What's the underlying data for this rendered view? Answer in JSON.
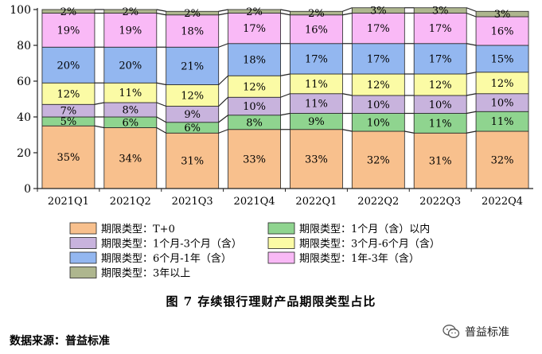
{
  "chart_data": {
    "type": "bar",
    "stacked": true,
    "categories": [
      "2021Q1",
      "2021Q2",
      "2021Q3",
      "2021Q4",
      "2022Q1",
      "2022Q2",
      "2022Q3",
      "2022Q4"
    ],
    "ylim": [
      0,
      100
    ],
    "yticks": [
      0,
      20,
      40,
      60,
      80,
      100
    ],
    "grid": false,
    "legend_position": "bottom",
    "series": [
      {
        "name": "期限类型：T+0",
        "color": "#F8C08D",
        "values": [
          35,
          34,
          31,
          33,
          33,
          32,
          31,
          32
        ]
      },
      {
        "name": "期限类型：1个月（含）以内",
        "color": "#8FD48F",
        "values": [
          5,
          6,
          6,
          8,
          9,
          10,
          11,
          11
        ]
      },
      {
        "name": "期限类型：1个月-3个月（含）",
        "color": "#C8B3DD",
        "values": [
          7,
          8,
          9,
          10,
          11,
          10,
          10,
          10
        ]
      },
      {
        "name": "期限类型：3个月-6个月（含）",
        "color": "#FBFBA5",
        "values": [
          12,
          11,
          12,
          12,
          11,
          12,
          12,
          12
        ]
      },
      {
        "name": "期限类型：6个月-1年（含）",
        "color": "#93B7F0",
        "values": [
          20,
          20,
          21,
          18,
          17,
          17,
          17,
          15
        ]
      },
      {
        "name": "期限类型：1年-3年（含）",
        "color": "#F9B9F6",
        "values": [
          19,
          19,
          18,
          17,
          16,
          17,
          17,
          16
        ]
      },
      {
        "name": "期限类型：3年以上",
        "color": "#AEB68E",
        "values": [
          2,
          2,
          2,
          2,
          2,
          3,
          3,
          3
        ]
      }
    ]
  },
  "caption": "图 7    存续银行理财产品期限类型占比",
  "source": "数据来源：普益标准",
  "watermark": {
    "text": "普益标准",
    "icon": "wechat-icon"
  }
}
